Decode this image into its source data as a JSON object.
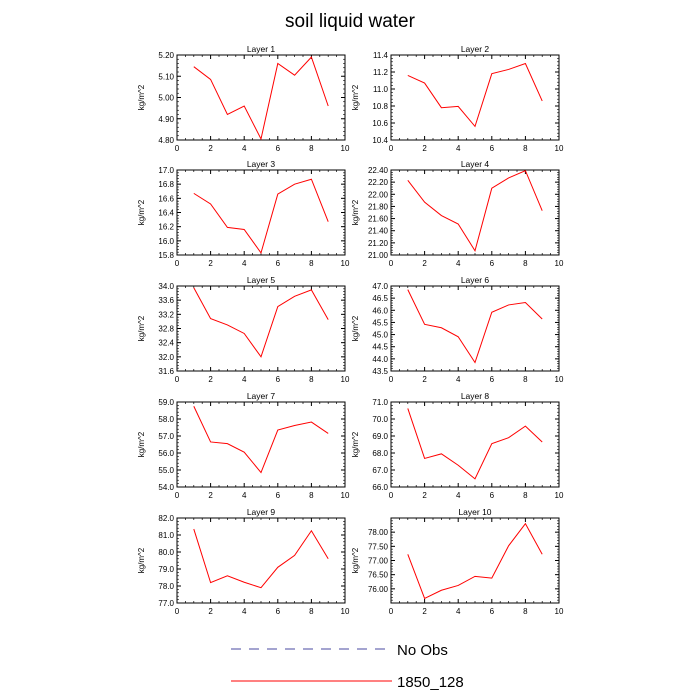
{
  "figure": {
    "title": "soil liquid water",
    "series_color": "#ff0000",
    "obs_color": "#4a4aa0"
  },
  "legend": {
    "items": [
      {
        "label": "No Obs",
        "style": "dashed",
        "color": "#4a4aa0"
      },
      {
        "label": "1850_128",
        "style": "solid",
        "color": "#ff0000"
      }
    ]
  },
  "chart_data": [
    {
      "type": "line",
      "title": "Layer 1",
      "ylabel": "kg/m^2",
      "xlim": [
        0,
        10
      ],
      "xticks": [
        "0",
        "2",
        "4",
        "6",
        "8",
        "10"
      ],
      "ylim": [
        4.8,
        5.2
      ],
      "yticks": [
        "4.80",
        "4.90",
        "5.00",
        "5.10",
        "5.20"
      ],
      "series": [
        {
          "name": "1850_128",
          "x": [
            1,
            2,
            3,
            4,
            5,
            6,
            7,
            8,
            9
          ],
          "values": [
            5.145,
            5.085,
            4.92,
            4.96,
            4.805,
            5.16,
            5.105,
            5.19,
            4.96
          ]
        }
      ]
    },
    {
      "type": "line",
      "title": "Layer 2",
      "ylabel": "kg/m^2",
      "xlim": [
        0,
        10
      ],
      "xticks": [
        "0",
        "2",
        "4",
        "6",
        "8",
        "10"
      ],
      "ylim": [
        10.4,
        11.4
      ],
      "yticks": [
        "10.4",
        "10.6",
        "10.8",
        "11.0",
        "11.2",
        "11.4"
      ],
      "series": [
        {
          "name": "1850_128",
          "x": [
            1,
            2,
            3,
            4,
            5,
            6,
            7,
            8,
            9
          ],
          "values": [
            11.16,
            11.07,
            10.78,
            10.795,
            10.56,
            11.18,
            11.23,
            11.3,
            10.86
          ]
        }
      ]
    },
    {
      "type": "line",
      "title": "Layer 3",
      "ylabel": "kg/m^2",
      "xlim": [
        0,
        10
      ],
      "xticks": [
        "0",
        "2",
        "4",
        "6",
        "8",
        "10"
      ],
      "ylim": [
        15.8,
        17.0
      ],
      "yticks": [
        "15.8",
        "16.0",
        "16.2",
        "16.4",
        "16.6",
        "16.8",
        "17.0"
      ],
      "series": [
        {
          "name": "1850_128",
          "x": [
            1,
            2,
            3,
            4,
            5,
            6,
            7,
            8,
            9
          ],
          "values": [
            16.67,
            16.52,
            16.19,
            16.16,
            15.83,
            16.66,
            16.8,
            16.87,
            16.27
          ]
        }
      ]
    },
    {
      "type": "line",
      "title": "Layer 4",
      "ylabel": "kg/m^2",
      "xlim": [
        0,
        10
      ],
      "xticks": [
        "0",
        "2",
        "4",
        "6",
        "8",
        "10"
      ],
      "ylim": [
        21.0,
        22.4
      ],
      "yticks": [
        "21.00",
        "21.20",
        "21.40",
        "21.60",
        "21.80",
        "22.00",
        "22.20",
        "22.40"
      ],
      "series": [
        {
          "name": "1850_128",
          "x": [
            1,
            2,
            3,
            4,
            5,
            6,
            7,
            8,
            9
          ],
          "values": [
            22.23,
            21.87,
            21.65,
            21.51,
            21.07,
            22.1,
            22.27,
            22.39,
            21.73
          ]
        }
      ]
    },
    {
      "type": "line",
      "title": "Layer 5",
      "ylabel": "kg/m^2",
      "xlim": [
        0,
        10
      ],
      "xticks": [
        "0",
        "2",
        "4",
        "6",
        "8",
        "10"
      ],
      "ylim": [
        31.6,
        34.0
      ],
      "yticks": [
        "31.6",
        "32.0",
        "32.4",
        "32.8",
        "33.2",
        "33.6",
        "34.0"
      ],
      "series": [
        {
          "name": "1850_128",
          "x": [
            1,
            2,
            3,
            4,
            5,
            6,
            7,
            8,
            9
          ],
          "values": [
            33.95,
            33.08,
            32.9,
            32.66,
            32.0,
            33.42,
            33.71,
            33.89,
            33.05
          ]
        }
      ]
    },
    {
      "type": "line",
      "title": "Layer 6",
      "ylabel": "kg/m^2",
      "xlim": [
        0,
        10
      ],
      "xticks": [
        "0",
        "2",
        "4",
        "6",
        "8",
        "10"
      ],
      "ylim": [
        43.5,
        47.0
      ],
      "yticks": [
        "43.5",
        "44.0",
        "44.5",
        "45.0",
        "45.5",
        "46.0",
        "46.5",
        "47.0"
      ],
      "series": [
        {
          "name": "1850_128",
          "x": [
            1,
            2,
            3,
            4,
            5,
            6,
            7,
            8,
            9
          ],
          "values": [
            46.85,
            45.42,
            45.28,
            44.91,
            43.85,
            45.92,
            46.22,
            46.32,
            45.64
          ]
        }
      ]
    },
    {
      "type": "line",
      "title": "Layer 7",
      "ylabel": "kg/m^2",
      "xlim": [
        0,
        10
      ],
      "xticks": [
        "0",
        "2",
        "4",
        "6",
        "8",
        "10"
      ],
      "ylim": [
        54.0,
        59.0
      ],
      "yticks": [
        "54.0",
        "55.0",
        "56.0",
        "57.0",
        "58.0",
        "59.0"
      ],
      "series": [
        {
          "name": "1850_128",
          "x": [
            1,
            2,
            3,
            4,
            5,
            6,
            7,
            8,
            9
          ],
          "values": [
            58.75,
            56.65,
            56.55,
            56.05,
            54.85,
            57.35,
            57.62,
            57.82,
            57.15
          ]
        }
      ]
    },
    {
      "type": "line",
      "title": "Layer 8",
      "ylabel": "kg/m^2",
      "xlim": [
        0,
        10
      ],
      "xticks": [
        "0",
        "2",
        "4",
        "6",
        "8",
        "10"
      ],
      "ylim": [
        66.0,
        71.0
      ],
      "yticks": [
        "66.0",
        "67.0",
        "68.0",
        "69.0",
        "70.0",
        "71.0"
      ],
      "series": [
        {
          "name": "1850_128",
          "x": [
            1,
            2,
            3,
            4,
            5,
            6,
            7,
            8,
            9
          ],
          "values": [
            70.62,
            67.68,
            67.95,
            67.28,
            66.48,
            68.55,
            68.9,
            69.58,
            68.65
          ]
        }
      ]
    },
    {
      "type": "line",
      "title": "Layer 9",
      "ylabel": "kg/m^2",
      "xlim": [
        0,
        10
      ],
      "xticks": [
        "0",
        "2",
        "4",
        "6",
        "8",
        "10"
      ],
      "ylim": [
        77.0,
        82.0
      ],
      "yticks": [
        "77.0",
        "78.0",
        "79.0",
        "80.0",
        "81.0",
        "82.0"
      ],
      "series": [
        {
          "name": "1850_128",
          "x": [
            1,
            2,
            3,
            4,
            5,
            6,
            7,
            8,
            9
          ],
          "values": [
            81.35,
            78.2,
            78.6,
            78.22,
            77.9,
            79.1,
            79.8,
            81.25,
            79.6
          ]
        }
      ]
    },
    {
      "type": "line",
      "title": "Layer 10",
      "ylabel": "kg/m^2",
      "xlim": [
        0,
        10
      ],
      "xticks": [
        "0",
        "2",
        "4",
        "6",
        "8",
        "10"
      ],
      "ylim": [
        75.5,
        78.5
      ],
      "yticks": [
        "76.00",
        "76.50",
        "77.00",
        "77.50",
        "78.00"
      ],
      "series": [
        {
          "name": "1850_128",
          "x": [
            1,
            2,
            3,
            4,
            5,
            6,
            7,
            8,
            9
          ],
          "values": [
            77.22,
            75.66,
            75.95,
            76.12,
            76.44,
            76.38,
            77.52,
            78.3,
            77.22
          ]
        }
      ]
    }
  ]
}
